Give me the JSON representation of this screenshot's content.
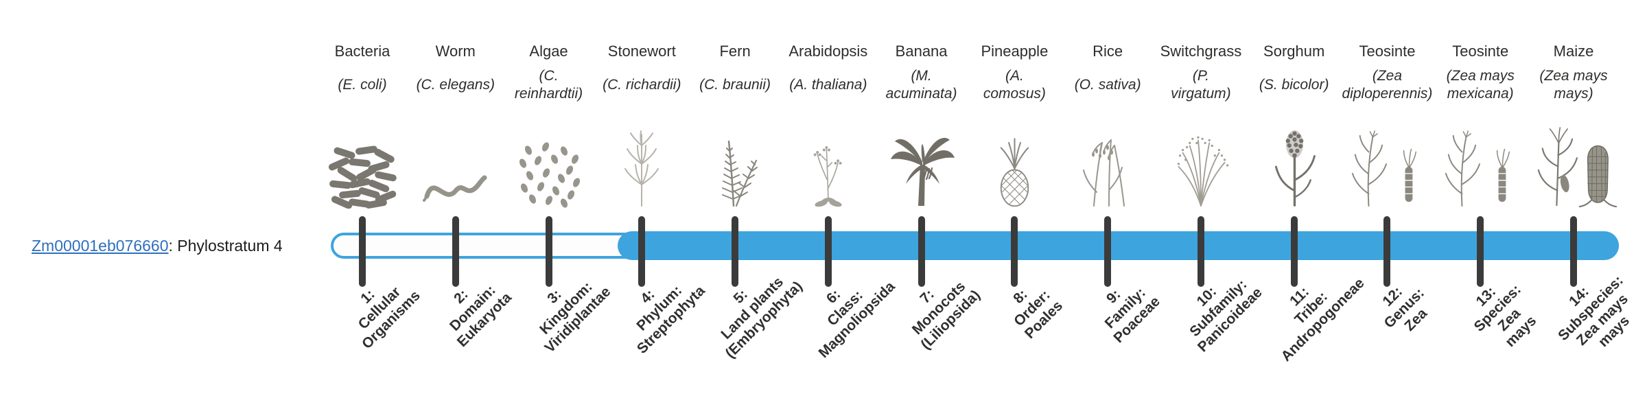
{
  "gene": {
    "id": "Zm00001eb076660",
    "suffix": ": Phylostratum 4",
    "phylostratum": 4
  },
  "track": {
    "fill_color": "#3EA4DE",
    "tick_color": "#3b3b3b",
    "filled_from_stratum": 4,
    "total_strata": 14
  },
  "columns": [
    {
      "name": "Bacteria",
      "sci_lines": [
        "(E. coli)"
      ],
      "icon": "bacteria-icon",
      "stage_lines": [
        "1:",
        "Cellular",
        "Organisms"
      ]
    },
    {
      "name": "Worm",
      "sci_lines": [
        "(C. elegans)"
      ],
      "icon": "worm-icon",
      "stage_lines": [
        "2:",
        "Domain:",
        "Eukaryota"
      ]
    },
    {
      "name": "Algae",
      "sci_lines": [
        "(C.",
        "reinhardtii)"
      ],
      "icon": "algae-icon",
      "stage_lines": [
        "3:",
        "Kingdom:",
        "Viridiplantae"
      ]
    },
    {
      "name": "Stonewort",
      "sci_lines": [
        "(C. richardii)"
      ],
      "icon": "stonewort-icon",
      "stage_lines": [
        "4:",
        "Phylum:",
        "Streptophyta"
      ]
    },
    {
      "name": "Fern",
      "sci_lines": [
        "(C. braunii)"
      ],
      "icon": "fern-icon",
      "stage_lines": [
        "5:",
        "Land plants",
        "(Embryophyta)"
      ]
    },
    {
      "name": "Arabidopsis",
      "sci_lines": [
        "(A. thaliana)"
      ],
      "icon": "arabidopsis-icon",
      "stage_lines": [
        "6:",
        "Class:",
        "Magnoliopsida"
      ]
    },
    {
      "name": "Banana",
      "sci_lines": [
        "(M.",
        "acuminata)"
      ],
      "icon": "banana-icon",
      "stage_lines": [
        "7:",
        "Monocots",
        "(Liliopsida)"
      ]
    },
    {
      "name": "Pineapple",
      "sci_lines": [
        "(A.",
        "comosus)"
      ],
      "icon": "pineapple-icon",
      "stage_lines": [
        "8:",
        "Order:",
        "Poales"
      ]
    },
    {
      "name": "Rice",
      "sci_lines": [
        "(O. sativa)"
      ],
      "icon": "rice-icon",
      "stage_lines": [
        "9:",
        "Family:",
        "Poaceae"
      ]
    },
    {
      "name": "Switchgrass",
      "sci_lines": [
        "(P.",
        "virgatum)"
      ],
      "icon": "switchgrass-icon",
      "stage_lines": [
        "10:",
        "Subfamily:",
        "Panicoideae"
      ]
    },
    {
      "name": "Sorghum",
      "sci_lines": [
        "(S. bicolor)"
      ],
      "icon": "sorghum-icon",
      "stage_lines": [
        "11:",
        "Tribe:",
        "Andropogoneae"
      ]
    },
    {
      "name": "Teosinte",
      "sci_lines": [
        "(Zea",
        "diploperennis)"
      ],
      "icon": "teosinte-icon",
      "stage_lines": [
        "12:",
        "Genus:",
        "Zea"
      ]
    },
    {
      "name": "Teosinte",
      "sci_lines": [
        "(Zea mays",
        "mexicana)"
      ],
      "icon": "teosinte2-icon",
      "stage_lines": [
        "13:",
        "Species:",
        "Zea",
        "mays"
      ]
    },
    {
      "name": "Maize",
      "sci_lines": [
        "(Zea mays",
        "mays)"
      ],
      "icon": "maize-icon",
      "stage_lines": [
        "14:",
        "Subspecies:",
        "Zea mays",
        "mays"
      ]
    }
  ]
}
